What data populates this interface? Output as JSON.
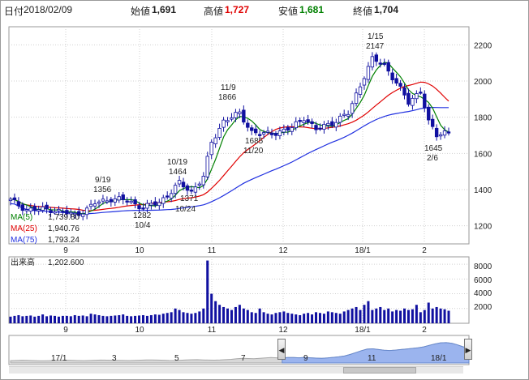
{
  "header": {
    "date_label": "日付",
    "date": "2018/02/09",
    "open_label": "始値",
    "open": "1,691",
    "high_label": "高値",
    "high": "1,727",
    "low_label": "安値",
    "low": "1,681",
    "close_label": "終値",
    "close": "1,704"
  },
  "colors": {
    "high": "#e00000",
    "low": "#008000",
    "ma5": "#008000",
    "ma25": "#e00000",
    "ma75": "#2030e0",
    "candle_up": "#ffffff",
    "candle_down": "#1010a0",
    "volume": "#1010a0",
    "nav_fill": "#9bb4ee"
  },
  "legend": {
    "ma5": "MA(5)",
    "ma5_value": "1,739.80",
    "ma25": "MA(25)",
    "ma25_value": "1,940.76",
    "ma75": "MA(75)",
    "ma75_value": "1,793.24"
  },
  "volume_panel": {
    "title": "出来高",
    "value": "1,202.600",
    "y_ticks": [
      "8000",
      "6000",
      "4000",
      "2000"
    ]
  },
  "annotations": [
    {
      "date": "9/19",
      "price": "1356"
    },
    {
      "date": "10/19",
      "price": "1464"
    },
    {
      "date": "10/24",
      "price": "1371"
    },
    {
      "date": "10/4",
      "price": "1282"
    },
    {
      "date": "11/9",
      "price": "1866"
    },
    {
      "date": "11/20",
      "price": "1685"
    },
    {
      "date": "1/15",
      "price": "2147"
    },
    {
      "date": "2/6",
      "price": "1645"
    }
  ],
  "nav_labels": [
    "17/1",
    "3",
    "5",
    "7",
    "9",
    "11",
    "18/1"
  ],
  "chart_data": {
    "type": "candlestick",
    "x_ticks": [
      "9",
      "10",
      "11",
      "12",
      "18/1",
      "2"
    ],
    "y_ticks": [
      1200,
      1400,
      1600,
      1800,
      2000,
      2200
    ],
    "ylim": [
      1100,
      2300
    ],
    "volume_ylim": [
      0,
      9000
    ],
    "anchors": [
      {
        "i": 0,
        "c": 1340
      },
      {
        "i": 4,
        "c": 1290
      },
      {
        "i": 10,
        "c": 1290
      },
      {
        "i": 16,
        "c": 1260
      },
      {
        "i": 19,
        "c": 1290
      },
      {
        "i": 21,
        "c": 1325
      },
      {
        "i": 25,
        "c": 1350
      },
      {
        "i": 29,
        "c": 1340
      },
      {
        "i": 33,
        "c": 1300
      },
      {
        "i": 37,
        "c": 1330
      },
      {
        "i": 40,
        "c": 1390
      },
      {
        "i": 42,
        "c": 1435
      },
      {
        "i": 45,
        "c": 1390
      },
      {
        "i": 48,
        "c": 1470
      },
      {
        "i": 50,
        "c": 1660
      },
      {
        "i": 53,
        "c": 1780
      },
      {
        "i": 57,
        "c": 1820
      },
      {
        "i": 60,
        "c": 1720
      },
      {
        "i": 63,
        "c": 1705
      },
      {
        "i": 66,
        "c": 1715
      },
      {
        "i": 70,
        "c": 1740
      },
      {
        "i": 73,
        "c": 1800
      },
      {
        "i": 76,
        "c": 1730
      },
      {
        "i": 80,
        "c": 1770
      },
      {
        "i": 84,
        "c": 1820
      },
      {
        "i": 88,
        "c": 2030
      },
      {
        "i": 90,
        "c": 2120
      },
      {
        "i": 93,
        "c": 2090
      },
      {
        "i": 96,
        "c": 1990
      },
      {
        "i": 99,
        "c": 1880
      },
      {
        "i": 102,
        "c": 1950
      },
      {
        "i": 104,
        "c": 1770
      },
      {
        "i": 106,
        "c": 1700
      },
      {
        "i": 108,
        "c": 1720
      }
    ],
    "volume_levels": [
      900,
      1000,
      1100,
      950,
      1000,
      1050,
      900,
      1000,
      1200,
      950,
      1050,
      1000,
      900,
      1000,
      1000,
      950,
      1100,
      1000,
      1050,
      950,
      1300,
      1200,
      1100,
      1000,
      950,
      1000,
      1050,
      1100,
      1200,
      1000,
      950,
      1000,
      1050,
      1100,
      1000,
      1100,
      1200,
      1150,
      1300,
      1400,
      1500,
      2000,
      1800,
      1500,
      1400,
      1300,
      1400,
      1600,
      2000,
      8500,
      4000,
      3000,
      2500,
      2200,
      2000,
      1800,
      2200,
      2500,
      2000,
      1800,
      1500,
      1400,
      2000,
      1500,
      1300,
      1200,
      1400,
      1500,
      1600,
      1400,
      1300,
      1200,
      1100,
      1300,
      1400,
      1200,
      1500,
      1400,
      1300,
      1600,
      1500,
      1400,
      1300,
      1600,
      1800,
      2000,
      2200,
      1800,
      2500,
      3000,
      1800,
      2000,
      2200,
      1800,
      2000,
      1600,
      1800,
      1700,
      2000,
      1800,
      1900,
      2500,
      1500,
      1800,
      2800,
      2000,
      2200,
      2000,
      1900,
      1700
    ],
    "nav_overview": [
      1180,
      1190,
      1200,
      1195,
      1185,
      1175,
      1170,
      1180,
      1190,
      1200,
      1205,
      1195,
      1185,
      1180,
      1190,
      1200,
      1210,
      1205,
      1200,
      1195,
      1190,
      1185,
      1195,
      1205,
      1215,
      1220,
      1210,
      1200,
      1190,
      1185,
      1200,
      1215,
      1225,
      1230,
      1220,
      1210,
      1205,
      1215,
      1230,
      1250,
      1280,
      1300,
      1290,
      1280,
      1300,
      1320,
      1340,
      1330,
      1320,
      1340,
      1340,
      1330,
      1350,
      1330,
      1310,
      1300,
      1320,
      1350,
      1380,
      1420,
      1500,
      1600,
      1700,
      1780,
      1800,
      1760,
      1720,
      1710,
      1730,
      1760,
      1790,
      1820,
      1850,
      1900,
      1980,
      2050,
      2110,
      2120,
      2080,
      2000,
      1900,
      1850
    ]
  }
}
